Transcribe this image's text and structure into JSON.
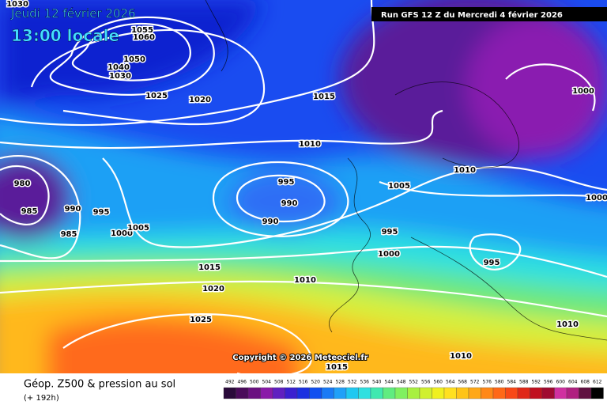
{
  "header": {
    "date": "Jeudi 12 février 2026",
    "time": "13:00 locale",
    "run": "Run GFS 12 Z du Mercredi 4 février 2026"
  },
  "copyright": "Copyright © 2026 Meteociel.fr",
  "isobar_labels": [
    "1030",
    "1055",
    "1060",
    "1050",
    "1040",
    "1030",
    "1025",
    "1020",
    "1015",
    "1010",
    "1005",
    "1010",
    "1000",
    "1000",
    "980",
    "985",
    "990",
    "995",
    "985",
    "1000",
    "1005",
    "995",
    "990",
    "990",
    "995",
    "1000",
    "995",
    "1015",
    "1010",
    "1020",
    "1025",
    "1010",
    "1010",
    "1015"
  ],
  "footer": {
    "title": "Géop. Z500 & pression au sol",
    "lead": "(+ 192h)"
  },
  "scale": [
    492,
    496,
    500,
    504,
    508,
    512,
    516,
    520,
    524,
    528,
    532,
    536,
    540,
    544,
    548,
    552,
    556,
    560,
    564,
    568,
    572,
    576,
    580,
    584,
    588,
    592,
    596,
    600,
    604,
    608,
    612
  ]
}
